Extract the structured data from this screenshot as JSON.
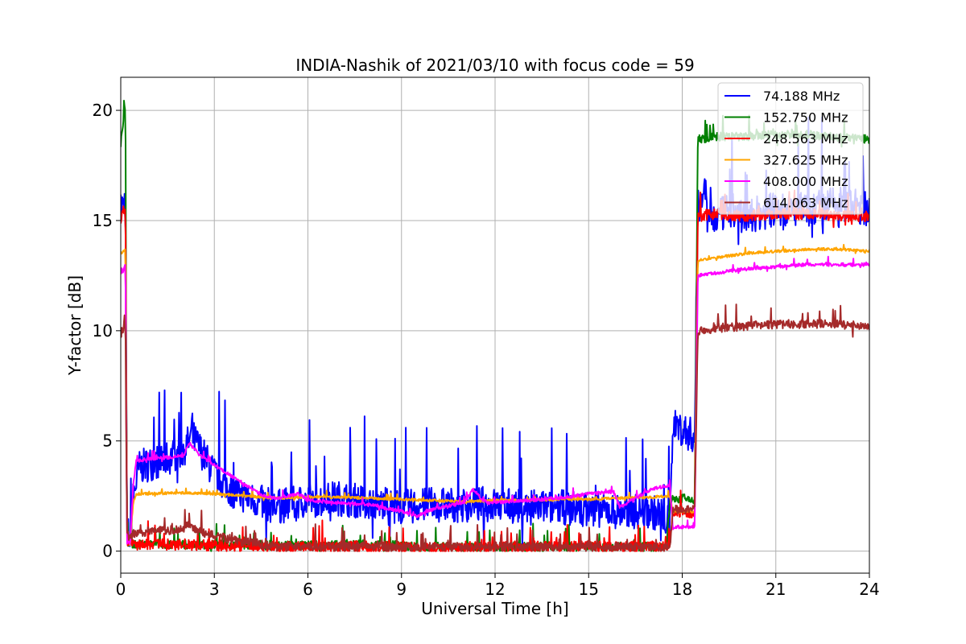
{
  "chart_data": {
    "type": "line",
    "title": "INDIA-Nashik of 2021/03/10 with focus code = 59",
    "xlabel": "Universal Time [h]",
    "ylabel": "Y-factor [dB]",
    "xlim": [
      0,
      24
    ],
    "ylim": [
      -1,
      21.5
    ],
    "xticks": [
      0,
      3,
      6,
      9,
      12,
      15,
      18,
      21,
      24
    ],
    "yticks": [
      0,
      5,
      10,
      15,
      20
    ],
    "grid": true,
    "legend_position": "top-right",
    "series": [
      {
        "name": "  74.188 MHz",
        "color": "#0000ff",
        "x": [
          0,
          0.1,
          0.15,
          0.2,
          0.3,
          0.4,
          0.6,
          1,
          1.5,
          2,
          2.3,
          2.6,
          3,
          3.5,
          4,
          4.5,
          5,
          6,
          7,
          8,
          9,
          10,
          11,
          12,
          13,
          14,
          15,
          16,
          17,
          17.4,
          17.6,
          17.7,
          18,
          18.4,
          18.5,
          18.7,
          19,
          19.5,
          20,
          21,
          22,
          23,
          24
        ],
        "y": [
          15.5,
          15.8,
          16.0,
          1.0,
          0.5,
          2.5,
          3.8,
          4.0,
          4.2,
          4.6,
          5.2,
          4.5,
          3.5,
          2.8,
          2.5,
          2.2,
          2.0,
          2.3,
          2.4,
          2.2,
          2.0,
          2.1,
          2.1,
          2.1,
          2.0,
          2.0,
          1.9,
          1.8,
          1.8,
          1.6,
          1.2,
          5.8,
          5.5,
          5.2,
          15.5,
          16.5,
          15.0,
          15.5,
          15.2,
          15.5,
          15.5,
          15.8,
          15.5
        ],
        "noise": 1.6
      },
      {
        "name": "152.750 MHz",
        "color": "#008000",
        "x": [
          0,
          0.1,
          0.15,
          0.2,
          0.3,
          0.5,
          1,
          3,
          5,
          8,
          10,
          12,
          15,
          17.5,
          17.6,
          18,
          18.4,
          18.5,
          18.6,
          19,
          20,
          21,
          22,
          23,
          24
        ],
        "y": [
          18.5,
          19.8,
          20.2,
          0.5,
          0.3,
          0.3,
          0.3,
          0.3,
          0.25,
          0.3,
          0.2,
          0.2,
          0.2,
          0.2,
          2.3,
          2.4,
          2.3,
          18.8,
          18.7,
          18.8,
          18.8,
          18.9,
          18.9,
          18.8,
          18.7
        ],
        "noise": 0.4
      },
      {
        "name": "248.563 MHz",
        "color": "#ff0000",
        "x": [
          0,
          0.1,
          0.15,
          0.2,
          0.3,
          0.5,
          1,
          2,
          3,
          4,
          5,
          6,
          8,
          10,
          12,
          14,
          16,
          17.6,
          17.7,
          18,
          18.4,
          18.5,
          19,
          20,
          21,
          22,
          23,
          24
        ],
        "y": [
          15.0,
          15.5,
          15.7,
          0.5,
          0.3,
          0.3,
          0.3,
          0.3,
          0.25,
          0.25,
          0.2,
          0.2,
          0.2,
          0.15,
          0.2,
          0.2,
          0.2,
          0.2,
          1.8,
          1.8,
          1.7,
          15.2,
          15.3,
          15.2,
          15.3,
          15.3,
          15.2,
          15.2
        ],
        "noise": 0.5
      },
      {
        "name": "327.625 MHz",
        "color": "#ffa500",
        "x": [
          0,
          0.1,
          0.15,
          0.2,
          0.3,
          0.4,
          0.5,
          1,
          2,
          3,
          4,
          5,
          6,
          7,
          8,
          9,
          10,
          11,
          12,
          13,
          14,
          15,
          16,
          17,
          17.6,
          17.7,
          18,
          18.4,
          18.5,
          19,
          20,
          21,
          22,
          23,
          24
        ],
        "y": [
          13.5,
          13.6,
          13.7,
          0.5,
          0.3,
          2.2,
          2.6,
          2.6,
          2.65,
          2.6,
          2.5,
          2.4,
          2.45,
          2.45,
          2.4,
          2.35,
          2.3,
          2.25,
          2.3,
          2.3,
          2.35,
          2.35,
          2.4,
          2.45,
          2.5,
          1.8,
          1.8,
          1.8,
          13.2,
          13.3,
          13.5,
          13.6,
          13.7,
          13.7,
          13.6
        ],
        "noise": 0.12
      },
      {
        "name": "408.000 MHz",
        "color": "#ff00ff",
        "x": [
          0,
          0.1,
          0.15,
          0.2,
          0.3,
          0.4,
          0.5,
          1,
          2,
          2.2,
          2.5,
          3,
          4,
          4.6,
          5,
          5.7,
          6,
          7,
          8,
          9,
          9.5,
          10,
          11,
          11.3,
          11.6,
          12,
          13,
          14,
          15,
          15.8,
          16,
          17,
          17.6,
          17.7,
          18,
          18.4,
          18.5,
          19,
          20,
          21,
          22,
          23,
          24
        ],
        "y": [
          12.5,
          12.8,
          13.0,
          0.5,
          0.3,
          3.0,
          4.1,
          4.2,
          4.3,
          4.9,
          4.4,
          3.9,
          3.0,
          2.5,
          2.4,
          2.6,
          2.3,
          2.2,
          2.1,
          1.8,
          1.6,
          1.9,
          2.2,
          2.8,
          2.3,
          2.2,
          2.3,
          2.4,
          2.6,
          2.7,
          2.0,
          2.8,
          3.0,
          1.1,
          1.1,
          1.1,
          12.5,
          12.6,
          12.8,
          12.9,
          13.0,
          13.0,
          13.0
        ],
        "noise": 0.15
      },
      {
        "name": "614.063 MHz",
        "color": "#a52a2a",
        "x": [
          0,
          0.1,
          0.15,
          0.2,
          0.3,
          0.5,
          1,
          2,
          2.2,
          2.5,
          3,
          4,
          5,
          6,
          8,
          10,
          12,
          14,
          16,
          17.6,
          17.7,
          18,
          18.4,
          18.5,
          19,
          20,
          21,
          22,
          23,
          24
        ],
        "y": [
          9.8,
          10.2,
          10.4,
          0.8,
          0.6,
          0.8,
          0.9,
          1.0,
          1.2,
          0.9,
          0.7,
          0.4,
          0.2,
          0.2,
          0.2,
          0.2,
          0.2,
          0.2,
          0.2,
          0.2,
          1.9,
          1.9,
          1.9,
          10.0,
          10.1,
          10.2,
          10.3,
          10.3,
          10.3,
          10.2
        ],
        "noise": 0.4
      }
    ]
  }
}
